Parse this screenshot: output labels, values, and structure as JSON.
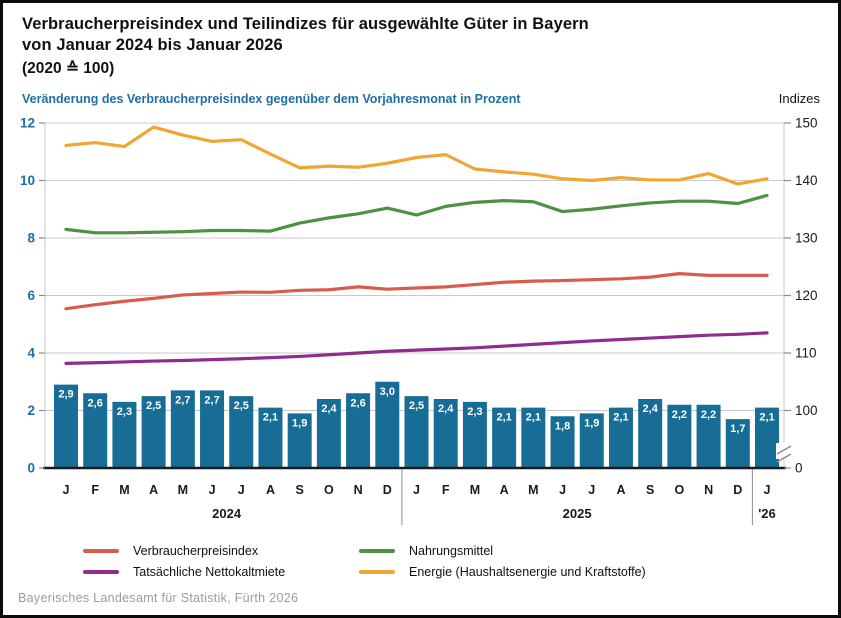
{
  "header": {
    "title_line1": "Verbraucherpreisindex und Teilindizes für ausgewählte Güter in Bayern",
    "title_line2": "von Januar 2024 bis Januar 2026",
    "title_line3": "(2020 ≙ 100)",
    "subtitle_left": "Veränderung des Verbraucherpreisindex gegenüber dem Vorjahresmonat in Prozent",
    "subtitle_right": "Indizes"
  },
  "footer": {
    "credit": "Bayerisches Landesamt für Statistik, Fürth 2026"
  },
  "colors": {
    "bar": "#176d96",
    "bar_label": "#ffffff",
    "grid": "#c9c9c9",
    "axis_left_text": "#1d6fa5",
    "axis_right_text": "#1a1a1a",
    "baseline": "#1a1a1a",
    "tick": "#8c8c8c",
    "separator": "#8c8c8c"
  },
  "chart_data": {
    "type": "bar+line",
    "months": [
      "J",
      "F",
      "M",
      "A",
      "M",
      "J",
      "J",
      "A",
      "S",
      "O",
      "N",
      "D",
      "J",
      "F",
      "M",
      "A",
      "M",
      "J",
      "J",
      "A",
      "S",
      "O",
      "N",
      "D",
      "J"
    ],
    "year_labels": [
      "2024",
      "2025",
      "'26"
    ],
    "left_axis": {
      "ticks": [
        12,
        10,
        8,
        6,
        4,
        2,
        0
      ],
      "range": [
        0,
        12
      ]
    },
    "right_axis": {
      "ticks": [
        150,
        140,
        130,
        120,
        110,
        100
      ],
      "bottom_tick": 0,
      "has_break": true,
      "label": "Indizes"
    },
    "bars": {
      "name": "Veränderung des Verbraucherpreisindex gegenüber dem Vorjahresmonat in Prozent",
      "values": [
        2.9,
        2.6,
        2.3,
        2.5,
        2.7,
        2.7,
        2.5,
        2.1,
        1.9,
        2.4,
        2.6,
        3.0,
        2.5,
        2.4,
        2.3,
        2.1,
        2.1,
        1.8,
        1.9,
        2.1,
        2.4,
        2.2,
        2.2,
        1.7,
        2.1
      ]
    },
    "series": [
      {
        "name": "Verbraucherpreisindex",
        "color": "#d95b4b",
        "values": [
          117.7,
          118.4,
          119.0,
          119.5,
          120.1,
          120.35,
          120.6,
          120.55,
          120.9,
          121.0,
          121.5,
          121.1,
          121.3,
          121.5,
          121.9,
          122.3,
          122.5,
          122.6,
          122.75,
          122.9,
          123.2,
          123.8,
          123.5,
          123.5,
          123.5
        ]
      },
      {
        "name": "Tatsächliche Nettokaltmiete",
        "color": "#8f2c90",
        "values": [
          108.2,
          108.3,
          108.45,
          108.6,
          108.7,
          108.85,
          109.0,
          109.2,
          109.4,
          109.7,
          110.0,
          110.3,
          110.5,
          110.7,
          110.9,
          111.2,
          111.5,
          111.8,
          112.1,
          112.35,
          112.6,
          112.85,
          113.1,
          113.25,
          113.5
        ]
      },
      {
        "name": "Nahrungsmittel",
        "color": "#4e9142",
        "values": [
          131.5,
          130.9,
          130.9,
          131.0,
          131.1,
          131.3,
          131.3,
          131.2,
          132.6,
          133.5,
          134.2,
          135.2,
          134.0,
          135.5,
          136.2,
          136.5,
          136.3,
          134.6,
          135.0,
          135.6,
          136.1,
          136.4,
          136.4,
          136.0,
          137.4
        ]
      },
      {
        "name": "Energie (Haushaltsenergie und Kraftstoffe)",
        "color": "#f0a732",
        "values": [
          146.1,
          146.6,
          145.9,
          149.3,
          147.9,
          146.8,
          147.1,
          144.6,
          142.2,
          142.5,
          142.3,
          143.0,
          144.0,
          144.5,
          142.0,
          141.5,
          141.1,
          140.3,
          140.0,
          140.5,
          140.1,
          140.1,
          141.2,
          139.4,
          140.3
        ]
      }
    ],
    "legend": [
      {
        "label": "Verbraucherpreisindex",
        "color": "#d95b4b"
      },
      {
        "label": "Nahrungsmittel",
        "color": "#4e9142"
      },
      {
        "label": "Tatsächliche Nettokaltmiete",
        "color": "#8f2c90"
      },
      {
        "label": "Energie (Haushaltsenergie und Kraftstoffe)",
        "color": "#f0a732"
      }
    ]
  }
}
